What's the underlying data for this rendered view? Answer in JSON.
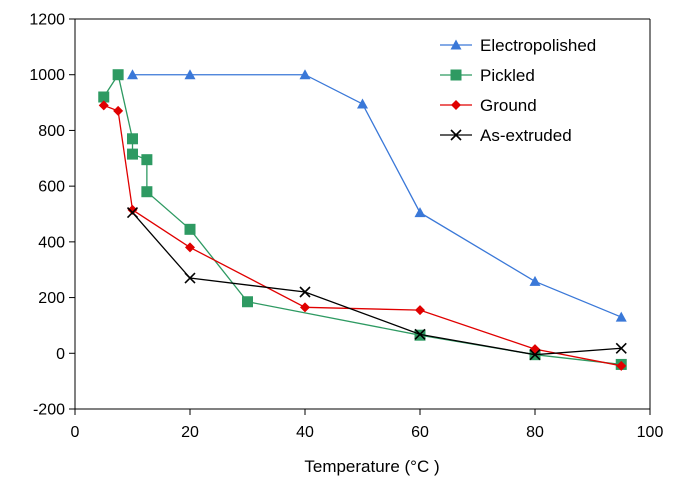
{
  "chart_data": {
    "type": "line",
    "title": "",
    "xlabel": "Temperature (°C )",
    "ylabel": "",
    "xlim": [
      0,
      100
    ],
    "ylim": [
      -200,
      1200
    ],
    "x_ticks": [
      0,
      20,
      40,
      60,
      80,
      100
    ],
    "y_ticks": [
      -200,
      0,
      200,
      400,
      600,
      800,
      1000,
      1200
    ],
    "grid": false,
    "legend_position": "top-right",
    "series": [
      {
        "name": "Electropolished",
        "color": "#3a78d8",
        "marker": "triangle",
        "points": [
          [
            10,
            1000
          ],
          [
            20,
            1000
          ],
          [
            40,
            1000
          ],
          [
            50,
            895
          ],
          [
            60,
            505
          ],
          [
            80,
            258
          ],
          [
            95,
            130
          ]
        ]
      },
      {
        "name": "Pickled",
        "color": "#2e9a62",
        "marker": "square",
        "points": [
          [
            5,
            920
          ],
          [
            7.5,
            1000
          ],
          [
            10,
            770
          ],
          [
            10,
            715
          ],
          [
            12.5,
            695
          ],
          [
            12.5,
            580
          ],
          [
            20,
            445
          ],
          [
            30,
            185
          ],
          [
            60,
            65
          ],
          [
            80,
            -5
          ],
          [
            95,
            -40
          ]
        ]
      },
      {
        "name": "Ground",
        "color": "#e00000",
        "marker": "diamond",
        "points": [
          [
            5,
            890
          ],
          [
            7.5,
            870
          ],
          [
            10,
            515
          ],
          [
            20,
            380
          ],
          [
            40,
            165
          ],
          [
            60,
            155
          ],
          [
            80,
            15
          ],
          [
            95,
            -45
          ]
        ]
      },
      {
        "name": "As-extruded",
        "color": "#000000",
        "marker": "x",
        "points": [
          [
            10,
            505
          ],
          [
            20,
            270
          ],
          [
            40,
            220
          ],
          [
            60,
            68
          ],
          [
            80,
            -5
          ],
          [
            95,
            18
          ]
        ]
      }
    ]
  }
}
